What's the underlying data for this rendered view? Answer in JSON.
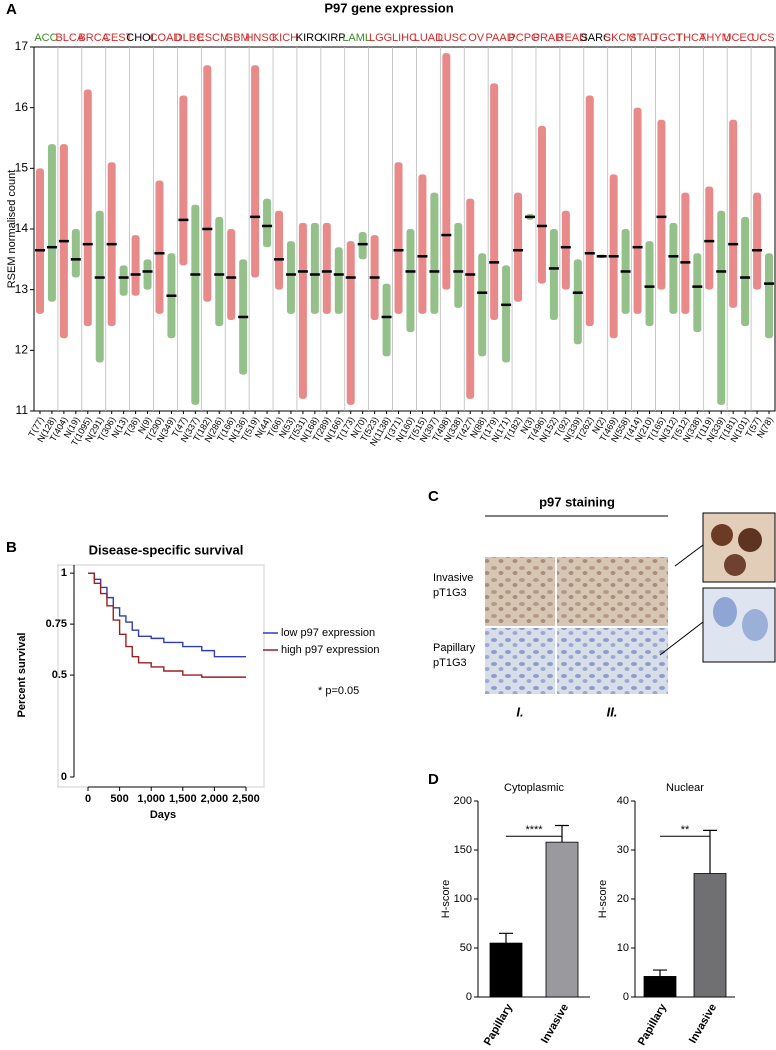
{
  "panels": [
    "A",
    "B",
    "C",
    "D"
  ],
  "panel_c": {
    "title": "p97 staining",
    "rows": [
      "Invasive pT1G3",
      "Papillary pT1G3"
    ],
    "columns": [
      "I.",
      "II."
    ]
  },
  "chart_data": [
    {
      "type": "strip",
      "title": "P97 gene expression",
      "ylabel": "RSEM normalised count",
      "ylim": [
        11,
        17
      ],
      "yticks": [
        11,
        12,
        13,
        14,
        15,
        16,
        17
      ],
      "groups": [
        "ACC",
        "BLCA",
        "BRCA",
        "CEST",
        "CHOL",
        "COAD",
        "DLBC",
        "ESCM",
        "GBM",
        "HNSC",
        "KICH",
        "KIRC",
        "KIRP",
        "LAML",
        "LGG",
        "LIHC",
        "LUAD",
        "LUSC",
        "OV",
        "PAAD",
        "PCPG",
        "PRAD",
        "READ",
        "SARC",
        "SKCM",
        "STAD",
        "TGCT",
        "THCA",
        "THYM",
        "UCEC",
        "UCS"
      ],
      "group_colors": [
        "#3c8c28",
        "#d62a2a",
        "#d62a2a",
        "#d62a2a",
        "#000000",
        "#d62a2a",
        "#d62a2a",
        "#d62a2a",
        "#d62a2a",
        "#d62a2a",
        "#d62a2a",
        "#000000",
        "#000000",
        "#3c8c28",
        "#d62a2a",
        "#d62a2a",
        "#d62a2a",
        "#d62a2a",
        "#d62a2a",
        "#d62a2a",
        "#d62a2a",
        "#d62a2a",
        "#d62a2a",
        "#000000",
        "#d62a2a",
        "#d62a2a",
        "#d62a2a",
        "#d62a2a",
        "#d62a2a",
        "#d62a2a",
        "#d62a2a"
      ],
      "categories": [
        "T(77)",
        "N(128)",
        "T(404)",
        "N(19)",
        "T(1095)",
        "N(291)",
        "T(306)",
        "N(13)",
        "T(36)",
        "N(9)",
        "T(290)",
        "N(349)",
        "T(47)",
        "N(337)",
        "T(182)",
        "N(286)",
        "T(166)",
        "N(136)",
        "T(519)",
        "N(44)",
        "T(66)",
        "N(53)",
        "T(531)",
        "N(168)",
        "T(289)",
        "N(166)",
        "T(173)",
        "N(70)",
        "T(523)",
        "N(1138)",
        "T(371)",
        "N(160)",
        "T(515)",
        "N(397)",
        "T(498)",
        "N(338)",
        "T(427)",
        "N(88)",
        "T(179)",
        "N(171)",
        "T(182)",
        "N(3)",
        "T(496)",
        "N(152)",
        "T(92)",
        "N(339)",
        "T(262)",
        "N(2)",
        "T(469)",
        "N(558)",
        "T(414)",
        "N(210)",
        "T(165)",
        "N(312)",
        "T(512)",
        "N(338)",
        "T(119)",
        "N(339)",
        "T(181)",
        "N(101)",
        "T(57)",
        "N(78)"
      ],
      "medians": [
        13.65,
        13.7,
        13.8,
        13.5,
        13.75,
        13.2,
        13.75,
        13.2,
        13.25,
        13.3,
        13.6,
        12.9,
        14.15,
        13.25,
        14.0,
        13.25,
        13.2,
        12.55,
        14.2,
        14.05,
        13.5,
        13.25,
        13.3,
        13.25,
        13.3,
        13.25,
        13.2,
        13.75,
        13.2,
        12.55,
        13.65,
        13.3,
        13.55,
        13.3,
        13.9,
        13.3,
        13.25,
        12.95,
        13.45,
        12.75,
        13.65,
        14.2,
        14.05,
        13.35,
        13.7,
        12.95,
        13.6,
        13.55,
        13.55,
        13.3,
        13.7,
        13.05,
        14.2,
        13.55,
        13.45,
        13.05,
        13.8,
        13.3,
        13.75,
        13.2,
        13.65,
        13.1
      ],
      "lows": [
        12.6,
        12.8,
        12.2,
        13.2,
        12.4,
        11.8,
        12.4,
        12.9,
        12.9,
        13.0,
        12.6,
        12.2,
        13.4,
        11.1,
        12.8,
        12.4,
        12.5,
        11.6,
        13.2,
        13.7,
        13.0,
        12.6,
        11.2,
        12.6,
        12.6,
        12.6,
        11.1,
        13.5,
        12.5,
        11.9,
        12.6,
        12.3,
        12.6,
        12.6,
        13.0,
        12.7,
        11.2,
        11.9,
        12.5,
        11.8,
        12.8,
        14.15,
        13.1,
        12.5,
        13.0,
        12.1,
        12.4,
        13.52,
        12.2,
        12.6,
        12.6,
        12.4,
        13.0,
        12.6,
        12.6,
        12.3,
        13.0,
        11.1,
        12.7,
        12.4,
        13.0,
        12.2
      ],
      "highs": [
        15.0,
        15.4,
        15.4,
        14.0,
        16.3,
        14.3,
        15.1,
        13.4,
        13.9,
        13.5,
        14.8,
        13.6,
        16.2,
        14.4,
        16.7,
        14.2,
        14.0,
        13.5,
        16.7,
        14.5,
        14.3,
        13.8,
        14.1,
        14.1,
        14.1,
        13.7,
        13.8,
        13.95,
        13.9,
        13.1,
        15.1,
        14.0,
        14.9,
        14.6,
        16.9,
        14.1,
        14.5,
        13.6,
        16.4,
        13.4,
        14.6,
        14.25,
        15.7,
        14.0,
        14.3,
        13.5,
        16.2,
        13.58,
        14.9,
        14.0,
        16.0,
        13.8,
        15.8,
        14.1,
        14.6,
        13.6,
        14.7,
        14.3,
        15.8,
        14.2,
        14.6,
        13.6
      ],
      "colors": [
        "#d62a2a",
        "#3c8c28"
      ]
    },
    {
      "type": "survival",
      "title": "Disease-specific survival",
      "xlabel": "Days",
      "ylabel": "Percent survival",
      "annotation": "* p=0.05",
      "xlim": [
        0,
        2500
      ],
      "ylim": [
        0,
        1.04
      ],
      "xticks": [
        0,
        500,
        {
          "value": 1000,
          "label": "1,000"
        },
        {
          "value": 1500,
          "label": "1,500"
        },
        {
          "value": 2000,
          "label": "2,000"
        },
        {
          "value": 2500,
          "label": "2,500"
        }
      ],
      "yticks": [
        0,
        0.5,
        0.75,
        1
      ],
      "series": [
        {
          "name": "low p97 expression",
          "color": "#2f3fb0",
          "x": [
            0,
            100,
            200,
            300,
            400,
            500,
            600,
            700,
            800,
            1000,
            1200,
            1500,
            1800,
            2000,
            2500
          ],
          "values": [
            1,
            0.97,
            0.93,
            0.88,
            0.83,
            0.79,
            0.76,
            0.72,
            0.69,
            0.68,
            0.66,
            0.64,
            0.62,
            0.59,
            0.59
          ]
        },
        {
          "name": "high p97 expression",
          "color": "#9c1f24",
          "x": [
            0,
            100,
            200,
            300,
            400,
            500,
            600,
            700,
            800,
            1000,
            1200,
            1500,
            1800,
            2500
          ],
          "values": [
            1,
            0.95,
            0.9,
            0.84,
            0.77,
            0.7,
            0.64,
            0.59,
            0.56,
            0.54,
            0.52,
            0.5,
            0.49,
            0.49
          ]
        }
      ]
    },
    {
      "type": "bar",
      "title": "Cytoplasmic",
      "ylabel": "H-score",
      "annotation": "****",
      "categories": [
        "Papillary",
        "Invasive"
      ],
      "values": [
        55,
        158
      ],
      "errors": [
        10,
        17
      ],
      "colors": [
        "#000000",
        "#9a9a9e"
      ],
      "ylim": [
        0,
        200
      ],
      "yticks": [
        0,
        50,
        100,
        150,
        200
      ]
    },
    {
      "type": "bar",
      "title": "Nuclear",
      "ylabel": "H-score",
      "annotation": "**",
      "categories": [
        "Papillary",
        "Invasive"
      ],
      "values": [
        4.2,
        25.2
      ],
      "errors": [
        1.3,
        8.8
      ],
      "colors": [
        "#000000",
        "#707072"
      ],
      "ylim": [
        0,
        40
      ],
      "yticks": [
        0,
        10,
        20,
        30,
        40
      ]
    }
  ]
}
